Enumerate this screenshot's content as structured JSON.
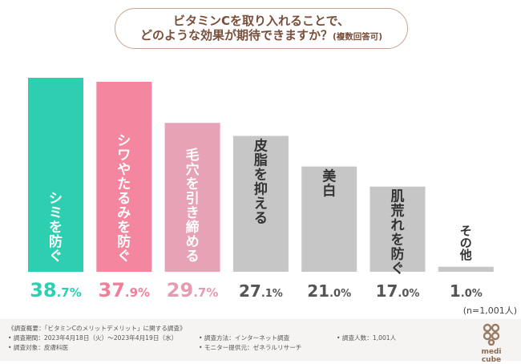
{
  "question": {
    "line1": "ビタミンCを取り入れることで、",
    "line2": "どのような効果が期待できますか？",
    "note": "(複数回答可)"
  },
  "sample_note": "(n=1,001人)",
  "footer": {
    "summary": "《調査概要：「ビタミンCのメリットデメリット」に関する調査》",
    "period": "• 調査期間：2023年4月18日（火）〜2023年4月19日（水）",
    "method": "• 調査方法：インターネット調査",
    "count": "• 調査人数：1,001人",
    "target": "• 調査対象：皮膚科医",
    "provider": "• モニター提供元：ゼネラルリサーチ"
  },
  "logo": {
    "text": "medi cube"
  },
  "colors": {
    "bar_1": "#2ecfb0",
    "bar_2": "#f4879f",
    "bar_3": "#e8a2b6",
    "bar_other": "#c6c6c6",
    "label_1": "#2ecfb0",
    "label_2": "#f0809a",
    "label_3": "#e49cb0",
    "label_other": "#555555"
  },
  "chart_data": {
    "type": "bar",
    "categories": [
      "シミを防ぐ",
      "シワやたるみを防ぐ",
      "毛穴を引き締める",
      "皮脂を抑える",
      "美白",
      "肌荒れを防ぐ",
      "その他"
    ],
    "values": [
      38.7,
      37.9,
      29.7,
      27.1,
      21.0,
      17.0,
      1.0
    ],
    "value_labels": [
      "38.7%",
      "37.9%",
      "29.7%",
      "27.1%",
      "21.0%",
      "17.0%",
      "1.0%"
    ],
    "unit": "%",
    "ylim": [
      0,
      38.7
    ],
    "grid": false,
    "legend": "none"
  }
}
